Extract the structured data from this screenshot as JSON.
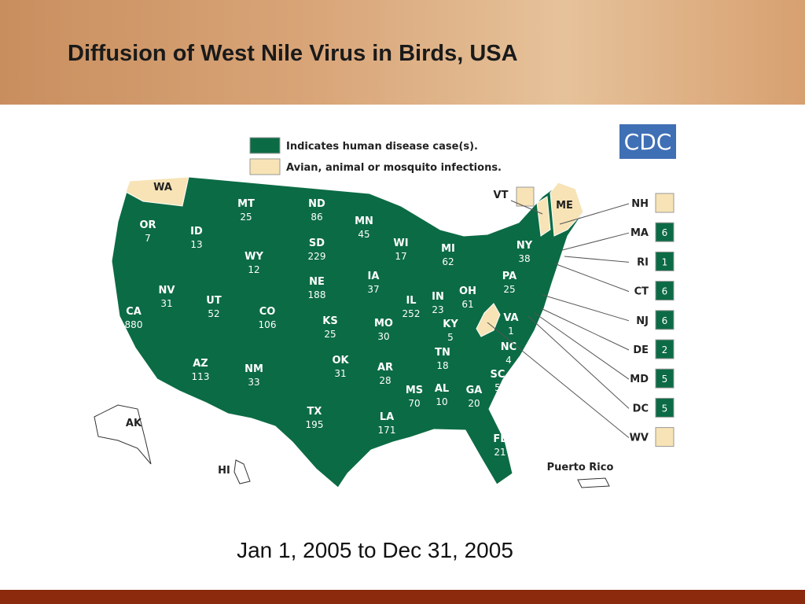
{
  "header": {
    "title": "Diffusion of West Nile Virus in Birds, USA"
  },
  "logo": "CDC",
  "legend": [
    {
      "color": "#0b6b45",
      "label": "Indicates human disease case(s)."
    },
    {
      "color": "#f7e3b5",
      "label": "Avian, animal or mosquito infections."
    }
  ],
  "states": [
    {
      "label": "WA",
      "color": "#f7e3b5"
    },
    {
      "label": "OR",
      "count": 7,
      "color": "#0b6b45"
    },
    {
      "label": "ID",
      "count": 13,
      "color": "#0b6b45"
    },
    {
      "label": "MT",
      "count": 25,
      "color": "#0b6b45"
    },
    {
      "label": "ND",
      "count": 86,
      "color": "#0b6b45"
    },
    {
      "label": "MN",
      "count": 45,
      "color": "#0b6b45"
    },
    {
      "label": "WI",
      "count": 17,
      "color": "#0b6b45"
    },
    {
      "label": "MI",
      "count": 62,
      "color": "#0b6b45"
    },
    {
      "label": "NY",
      "count": 38,
      "color": "#0b6b45"
    },
    {
      "label": "CA",
      "count": 880,
      "color": "#0b6b45"
    },
    {
      "label": "NV",
      "count": 31,
      "color": "#0b6b45"
    },
    {
      "label": "UT",
      "count": 52,
      "color": "#0b6b45"
    },
    {
      "label": "WY",
      "count": 12,
      "color": "#0b6b45"
    },
    {
      "label": "SD",
      "count": 229,
      "color": "#0b6b45"
    },
    {
      "label": "NE",
      "count": 188,
      "color": "#0b6b45"
    },
    {
      "label": "IA",
      "count": 37,
      "color": "#0b6b45"
    },
    {
      "label": "IL",
      "count": 252,
      "color": "#0b6b45"
    },
    {
      "label": "IN",
      "count": 23,
      "color": "#0b6b45"
    },
    {
      "label": "OH",
      "count": 61,
      "color": "#0b6b45"
    },
    {
      "label": "PA",
      "count": 25,
      "color": "#0b6b45"
    },
    {
      "label": "CO",
      "count": 106,
      "color": "#0b6b45"
    },
    {
      "label": "KS",
      "count": 25,
      "color": "#0b6b45"
    },
    {
      "label": "MO",
      "count": 30,
      "color": "#0b6b45"
    },
    {
      "label": "KY",
      "count": 5,
      "color": "#0b6b45"
    },
    {
      "label": "VA",
      "count": 1,
      "color": "#0b6b45"
    },
    {
      "label": "AZ",
      "count": 113,
      "color": "#0b6b45"
    },
    {
      "label": "NM",
      "count": 33,
      "color": "#0b6b45"
    },
    {
      "label": "OK",
      "count": 31,
      "color": "#0b6b45"
    },
    {
      "label": "AR",
      "count": 28,
      "color": "#0b6b45"
    },
    {
      "label": "TN",
      "count": 18,
      "color": "#0b6b45"
    },
    {
      "label": "NC",
      "count": 4,
      "color": "#0b6b45"
    },
    {
      "label": "SC",
      "count": 5,
      "color": "#0b6b45"
    },
    {
      "label": "TX",
      "count": 195,
      "color": "#0b6b45"
    },
    {
      "label": "MS",
      "count": 70,
      "color": "#0b6b45"
    },
    {
      "label": "AL",
      "count": 10,
      "color": "#0b6b45"
    },
    {
      "label": "GA",
      "count": 20,
      "color": "#0b6b45"
    },
    {
      "label": "LA",
      "count": 171,
      "color": "#0b6b45"
    },
    {
      "label": "FL",
      "count": 21,
      "color": "#0b6b45"
    },
    {
      "label": "AK",
      "color": "#0b6b45"
    },
    {
      "label": "HI",
      "color": "#0b6b45"
    },
    {
      "label": "VT",
      "color": "#f7e3b5"
    },
    {
      "label": "ME",
      "color": "#f7e3b5"
    },
    {
      "label": "Puerto Rico",
      "color": "#0b6b45"
    }
  ],
  "callouts": [
    {
      "label": "NH",
      "color": "#f7e3b5"
    },
    {
      "label": "MA",
      "count": 6,
      "color": "#0b6b45"
    },
    {
      "label": "RI",
      "count": 1,
      "color": "#0b6b45"
    },
    {
      "label": "CT",
      "count": 6,
      "color": "#0b6b45"
    },
    {
      "label": "NJ",
      "count": 6,
      "color": "#0b6b45"
    },
    {
      "label": "DE",
      "count": 2,
      "color": "#0b6b45"
    },
    {
      "label": "MD",
      "count": 5,
      "color": "#0b6b45"
    },
    {
      "label": "DC",
      "count": 5,
      "color": "#0b6b45"
    },
    {
      "label": "WV",
      "color": "#f7e3b5"
    }
  ],
  "caption": "Jan 1, 2005 to Dec 31, 2005"
}
